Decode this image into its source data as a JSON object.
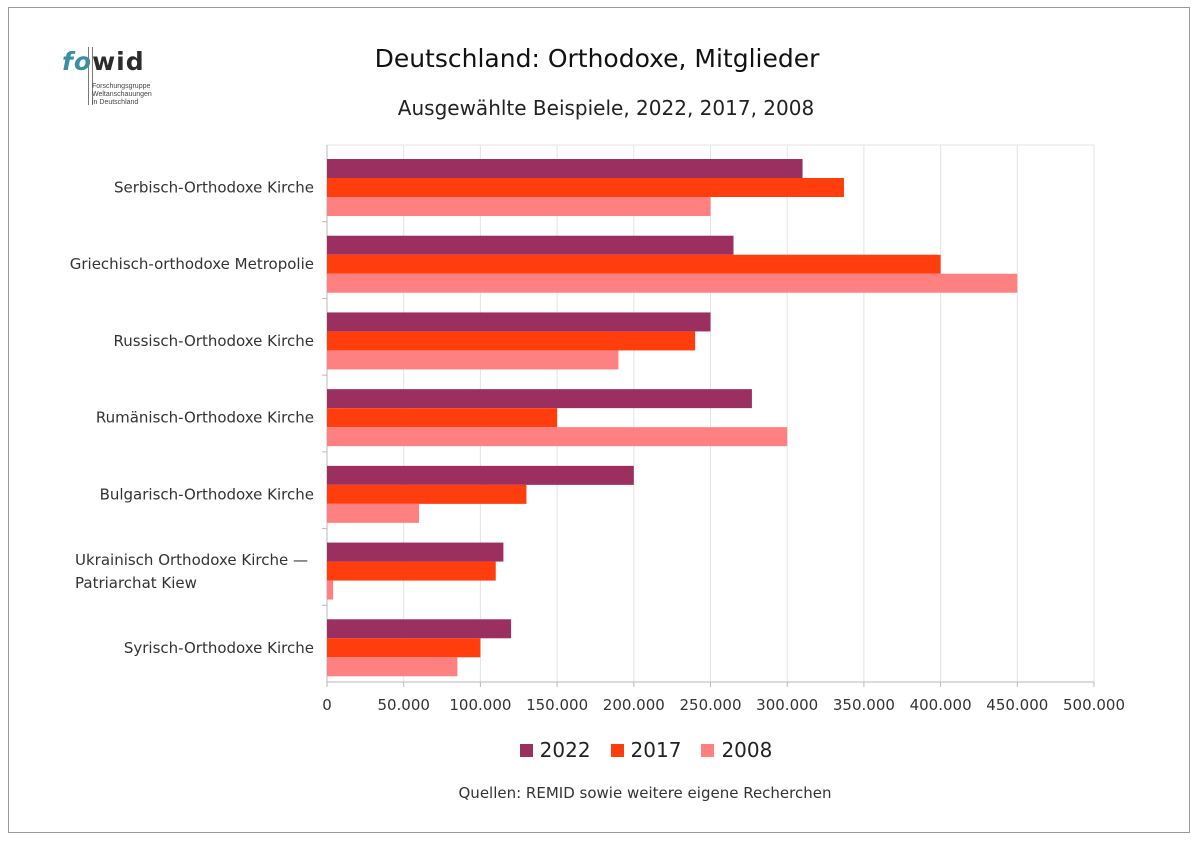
{
  "logo": {
    "fo": "fo",
    "wid": "wid",
    "sub_lines": [
      "Forschungsgruppe",
      "Weltanschauungen",
      "in Deutschland"
    ]
  },
  "source_text": "Quellen: REMID sowie weitere eigene Recherchen",
  "chart_data": {
    "type": "bar",
    "orientation": "horizontal",
    "title": "Deutschland: Orthodoxe, Mitglieder",
    "subtitle": "Ausgewählte Beispiele, 2022, 2017, 2008",
    "categories": [
      [
        "Serbisch-Orthodoxe Kirche"
      ],
      [
        "Griechisch-orthodoxe Metropolie"
      ],
      [
        "Russisch-Orthodoxe Kirche"
      ],
      [
        "Rumänisch-Orthodoxe Kirche"
      ],
      [
        "Bulgarisch-Orthodoxe Kirche"
      ],
      [
        "Ukrainisch Orthodoxe Kirche —",
        "Patriarchat Kiew"
      ],
      [
        "Syrisch-Orthodoxe Kirche"
      ]
    ],
    "series": [
      {
        "name": "2022",
        "color": "#9b2f5f",
        "values": [
          310000,
          265000,
          250000,
          277000,
          200000,
          115000,
          120000
        ]
      },
      {
        "name": "2017",
        "color": "#ff3d0d",
        "values": [
          337000,
          400000,
          240000,
          150000,
          130000,
          110000,
          100000
        ]
      },
      {
        "name": "2008",
        "color": "#ff8080",
        "values": [
          250000,
          450000,
          190000,
          300000,
          60000,
          4000,
          85000
        ]
      }
    ],
    "xlim": [
      0,
      500000
    ],
    "xticks": [
      0,
      50000,
      100000,
      150000,
      200000,
      250000,
      300000,
      350000,
      400000,
      450000,
      500000
    ],
    "xtick_labels": [
      "0",
      "50.000",
      "100.000",
      "150.000",
      "200.000",
      "250.000",
      "300.000",
      "350.000",
      "400.000",
      "450.000",
      "500.000"
    ],
    "grid": true,
    "legend_position": "bottom"
  }
}
